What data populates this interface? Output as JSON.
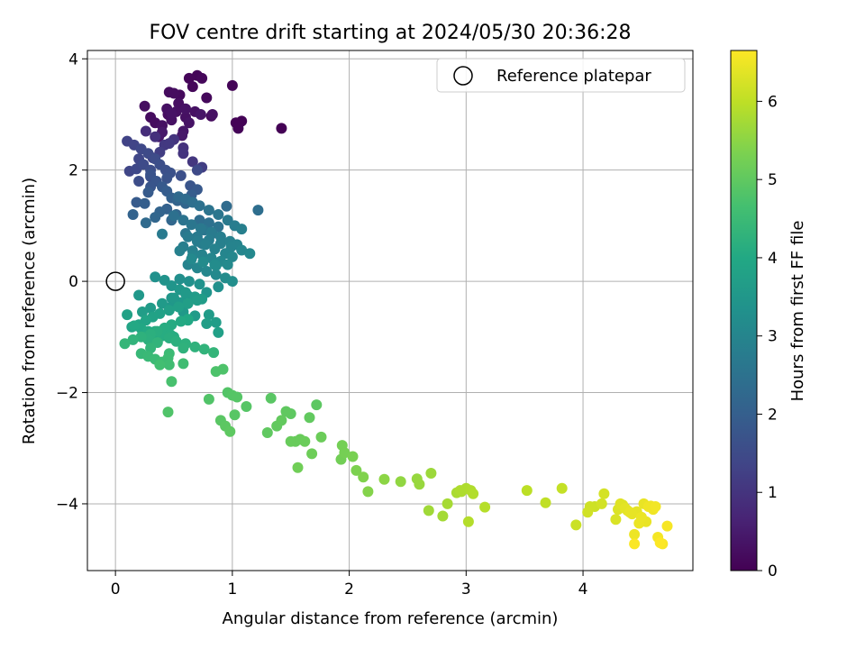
{
  "chart_data": {
    "type": "scatter",
    "title": "FOV centre drift starting at 2024/05/30 20:36:28",
    "xlabel": "Angular distance from reference (arcmin)",
    "ylabel": "Rotation from reference (arcmin)",
    "xlim": [
      -0.24,
      4.94
    ],
    "ylim": [
      -5.2,
      4.15
    ],
    "x_ticks": [
      0,
      1,
      2,
      3,
      4
    ],
    "y_ticks": [
      -4,
      -2,
      0,
      2,
      4
    ],
    "grid": true,
    "legend": {
      "placement": "top-right",
      "entries": [
        "Reference platepar"
      ]
    },
    "reference_point": {
      "name": "Reference platepar",
      "x": 0,
      "y": 0
    },
    "colorbar": {
      "label": "Hours from first FF file",
      "range": [
        0,
        6.65
      ],
      "ticks": [
        0,
        1,
        2,
        3,
        4,
        5,
        6
      ],
      "colormap": "viridis",
      "colors": [
        "#440154",
        "#482475",
        "#414487",
        "#355f8d",
        "#2a788e",
        "#21918c",
        "#22a884",
        "#44bf70",
        "#7ad151",
        "#bddf26",
        "#fde725"
      ]
    },
    "series": [
      {
        "x": [
          0.3,
          0.45,
          0.52,
          0.6,
          0.63,
          0.73,
          0.58,
          0.48,
          0.4,
          0.34,
          0.25,
          0.37,
          0.55,
          0.66,
          0.78,
          0.83,
          0.7,
          0.63,
          1.03,
          1.05,
          1.08,
          1.0,
          1.42,
          0.46,
          0.5,
          0.54,
          0.6,
          0.68,
          0.74,
          0.82,
          0.57,
          0.4,
          0.44,
          0.48,
          0.1,
          0.16,
          0.22,
          0.28,
          0.34,
          0.38,
          0.43,
          0.47,
          0.3,
          0.12,
          0.18,
          0.24,
          0.32,
          0.38,
          0.42,
          0.5,
          0.58,
          0.2,
          0.26,
          0.34,
          0.46,
          0.58,
          0.66,
          0.74,
          0.3,
          0.35,
          0.4,
          0.44,
          0.48,
          0.53,
          0.6,
          0.65,
          0.7,
          0.2,
          0.3,
          0.28,
          0.25,
          0.15,
          0.48,
          0.34,
          0.38,
          0.26,
          0.18,
          0.3,
          0.44,
          0.56,
          0.64,
          0.44,
          0.52,
          0.7,
          0.54,
          0.6,
          0.66,
          0.72,
          0.8,
          0.88,
          0.96,
          1.02,
          1.08,
          0.5,
          0.58,
          0.65,
          0.73,
          0.82,
          0.9,
          0.98,
          1.04,
          0.62,
          0.7,
          0.77,
          0.85,
          0.94,
          1.0,
          0.58,
          0.66,
          0.74,
          0.82,
          0.9,
          0.96,
          0.62,
          0.7,
          0.78,
          0.86,
          0.94,
          1.0,
          0.6,
          0.7,
          0.8,
          0.9,
          0.99,
          1.08,
          1.15,
          0.65,
          0.75,
          0.85,
          0.72,
          0.8,
          0.88,
          0.76,
          0.55,
          0.66,
          0.74,
          0.83,
          0.95,
          1.22,
          0.86,
          0.4,
          0.34,
          0.42,
          0.48,
          0.55,
          0.6,
          0.68,
          0.74,
          0.78,
          0.88,
          0.48,
          0.56,
          0.62,
          0.8,
          0.86,
          0.55,
          0.63,
          0.72,
          0.48,
          0.58,
          0.68,
          0.78,
          0.1,
          0.16,
          0.22,
          0.28,
          0.34,
          0.4,
          0.46,
          0.52,
          0.6,
          0.68,
          0.76,
          0.84,
          0.88,
          0.14,
          0.2,
          0.26,
          0.32,
          0.38,
          0.46,
          0.54,
          0.62,
          0.7,
          0.08,
          0.15,
          0.22,
          0.3,
          0.36,
          0.42,
          0.48,
          0.56,
          0.62,
          0.22,
          0.28,
          0.34,
          0.4,
          0.46,
          0.3,
          0.36,
          0.46,
          0.58,
          0.26,
          0.34,
          0.42,
          0.47,
          0.58,
          0.23,
          0.3,
          0.4,
          0.5,
          0.6,
          0.38,
          0.45,
          0.5,
          0.48,
          0.62,
          0.2,
          0.16,
          0.45,
          0.28,
          0.8,
          0.86,
          0.92,
          0.96,
          1.0,
          1.04,
          0.9,
          0.94,
          0.98,
          1.02,
          1.12,
          1.33,
          1.3,
          1.38,
          1.42,
          1.46,
          1.5,
          1.54,
          1.58,
          1.62,
          1.66,
          1.72,
          1.76,
          1.68,
          1.56,
          1.5,
          1.94,
          1.96,
          2.03,
          2.06,
          2.12,
          2.16,
          2.3,
          2.44,
          2.58,
          2.6,
          2.7,
          1.93,
          2.68,
          2.8,
          2.84,
          2.92,
          2.96,
          3.0,
          3.04,
          3.06,
          3.16,
          3.02,
          2.95,
          3.52,
          3.68,
          3.82,
          3.94,
          4.04,
          4.06,
          4.1,
          4.16,
          4.18,
          4.3,
          4.32,
          4.36,
          4.4,
          4.44,
          4.48,
          4.52,
          4.56,
          4.6,
          4.64,
          4.68,
          4.72,
          4.46,
          4.54,
          4.42,
          4.38,
          4.5,
          4.62,
          4.34,
          4.28,
          4.44,
          4.58,
          4.66
        ],
        "y": [
          2.95,
          3.0,
          3.05,
          3.1,
          2.85,
          3.0,
          2.7,
          2.9,
          2.8,
          2.85,
          3.15,
          2.6,
          3.35,
          3.5,
          3.3,
          3.0,
          3.7,
          3.65,
          2.85,
          2.75,
          2.88,
          3.52,
          2.75,
          3.4,
          3.38,
          3.2,
          2.95,
          3.05,
          3.65,
          2.97,
          2.62,
          2.68,
          3.1,
          3.02,
          2.52,
          2.45,
          2.38,
          2.3,
          2.2,
          2.1,
          2.0,
          1.95,
          1.92,
          1.98,
          2.02,
          2.1,
          2.22,
          2.32,
          2.45,
          2.55,
          2.4,
          2.2,
          2.7,
          2.6,
          2.48,
          2.3,
          2.15,
          2.05,
          2.0,
          1.8,
          1.7,
          1.62,
          1.5,
          1.45,
          1.4,
          1.55,
          1.65,
          1.8,
          1.88,
          1.6,
          1.4,
          1.2,
          1.1,
          1.15,
          1.25,
          1.05,
          1.42,
          1.7,
          1.85,
          1.9,
          1.72,
          1.3,
          1.2,
          2.0,
          1.52,
          1.48,
          1.42,
          1.36,
          1.28,
          1.2,
          1.1,
          1.0,
          0.94,
          1.18,
          1.1,
          1.02,
          0.95,
          0.88,
          0.8,
          0.72,
          0.66,
          0.8,
          0.72,
          0.66,
          0.58,
          0.5,
          0.44,
          0.62,
          0.55,
          0.48,
          0.42,
          0.36,
          0.3,
          0.3,
          0.24,
          0.18,
          0.12,
          0.06,
          0.0,
          0.86,
          0.8,
          0.74,
          0.68,
          0.62,
          0.56,
          0.5,
          0.4,
          0.35,
          0.3,
          1.1,
          1.05,
          0.98,
          0.92,
          0.55,
          0.46,
          0.68,
          0.86,
          1.35,
          1.28,
          0.28,
          0.85,
          0.08,
          0.02,
          -0.08,
          -0.15,
          -0.22,
          -0.28,
          -0.32,
          -0.2,
          -0.1,
          -0.3,
          -0.38,
          -0.26,
          -0.6,
          -0.74,
          0.04,
          0.0,
          -0.05,
          -0.45,
          -0.55,
          -0.62,
          -0.76,
          -0.6,
          -0.8,
          -0.85,
          -0.9,
          -0.95,
          -0.98,
          -1.02,
          -1.08,
          -1.12,
          -1.18,
          -1.22,
          -1.28,
          -0.92,
          -0.82,
          -0.78,
          -0.7,
          -0.64,
          -0.58,
          -0.52,
          -0.46,
          -0.4,
          -0.34,
          -1.12,
          -1.05,
          -1.0,
          -0.95,
          -0.9,
          -0.84,
          -0.78,
          -0.72,
          -0.68,
          -1.3,
          -1.35,
          -1.4,
          -1.45,
          -1.5,
          -1.2,
          -1.1,
          -1.3,
          -1.48,
          -1.0,
          -0.9,
          -0.86,
          -0.96,
          -1.2,
          -0.55,
          -0.48,
          -0.4,
          -0.3,
          -0.2,
          -1.5,
          -1.38,
          -1.0,
          -1.8,
          -0.7,
          -0.25,
          -0.8,
          -2.35,
          -1.05,
          -2.12,
          -1.62,
          -1.58,
          -2.0,
          -2.05,
          -2.08,
          -2.5,
          -2.6,
          -2.7,
          -2.4,
          -2.25,
          -2.1,
          -2.72,
          -2.6,
          -2.5,
          -2.34,
          -2.38,
          -2.88,
          -2.84,
          -2.88,
          -2.45,
          -2.22,
          -2.8,
          -3.1,
          -3.35,
          -2.88,
          -2.95,
          -3.08,
          -3.15,
          -3.4,
          -3.52,
          -3.78,
          -3.56,
          -3.6,
          -3.55,
          -3.65,
          -3.45,
          -3.2,
          -4.12,
          -4.22,
          -4.0,
          -3.8,
          -3.78,
          -3.72,
          -3.76,
          -3.82,
          -4.06,
          -4.32,
          -3.76,
          -3.76,
          -3.98,
          -3.72,
          -4.38,
          -4.15,
          -4.05,
          -4.05,
          -4.0,
          -3.82,
          -4.1,
          -4.0,
          -4.08,
          -4.15,
          -4.55,
          -4.35,
          -4.0,
          -4.05,
          -4.1,
          -4.6,
          -4.72,
          -4.4,
          -4.14,
          -4.32,
          -4.18,
          -4.12,
          -4.24,
          -4.05,
          -4.02,
          -4.28,
          -4.72,
          -4.04,
          -4.7
        ],
        "hours": [
          0.2,
          0.25,
          0.28,
          0.32,
          0.35,
          0.38,
          0.4,
          0.3,
          0.3,
          0.22,
          0.24,
          0.42,
          0.18,
          0.12,
          0.15,
          0.3,
          0.08,
          0.1,
          0.05,
          0.06,
          0.04,
          0.07,
          0.02,
          0.2,
          0.22,
          0.26,
          0.28,
          0.3,
          0.12,
          0.18,
          0.45,
          0.45,
          0.3,
          0.34,
          1.3,
          1.35,
          1.42,
          1.48,
          1.52,
          1.58,
          1.62,
          1.66,
          1.7,
          1.38,
          1.44,
          1.5,
          1.3,
          1.2,
          1.1,
          1.0,
          0.95,
          1.4,
          0.85,
          0.92,
          1.1,
          1.0,
          1.05,
          1.2,
          1.56,
          1.76,
          1.88,
          1.95,
          2.05,
          2.12,
          2.15,
          1.95,
          1.84,
          1.54,
          1.6,
          1.9,
          2.0,
          2.1,
          2.2,
          2.18,
          2.12,
          2.28,
          1.9,
          1.76,
          1.7,
          1.62,
          1.74,
          2.08,
          2.18,
          1.48,
          2.3,
          2.35,
          2.42,
          2.48,
          2.55,
          2.62,
          2.7,
          2.78,
          2.85,
          2.46,
          2.54,
          2.6,
          2.68,
          2.75,
          2.82,
          2.9,
          2.96,
          2.74,
          2.8,
          2.86,
          2.92,
          3.0,
          3.06,
          2.82,
          2.88,
          2.94,
          3.02,
          3.08,
          3.14,
          2.94,
          3.0,
          3.06,
          3.12,
          3.18,
          3.24,
          2.6,
          2.7,
          2.78,
          2.86,
          2.94,
          3.02,
          3.08,
          3.1,
          3.16,
          3.2,
          2.38,
          2.45,
          2.52,
          2.58,
          2.88,
          2.96,
          2.72,
          2.62,
          2.32,
          2.4,
          3.2,
          2.7,
          3.32,
          3.38,
          3.44,
          3.5,
          3.56,
          3.6,
          3.64,
          3.4,
          3.3,
          3.46,
          3.52,
          3.48,
          3.62,
          3.68,
          3.26,
          3.3,
          3.36,
          3.5,
          3.56,
          3.6,
          3.7,
          3.8,
          3.9,
          3.96,
          4.02,
          4.06,
          4.1,
          4.14,
          4.18,
          4.22,
          4.26,
          4.3,
          4.34,
          3.76,
          3.84,
          3.88,
          3.86,
          3.82,
          3.78,
          3.74,
          3.72,
          3.7,
          3.68,
          4.38,
          4.3,
          4.24,
          4.18,
          4.14,
          4.1,
          4.06,
          4.02,
          3.98,
          4.42,
          4.46,
          4.5,
          4.54,
          4.58,
          4.34,
          4.3,
          4.5,
          4.58,
          4.12,
          4.06,
          4.02,
          4.1,
          4.26,
          3.66,
          3.62,
          3.58,
          3.54,
          3.5,
          4.62,
          4.54,
          4.1,
          4.7,
          3.96,
          3.52,
          4.0,
          4.8,
          4.2,
          4.82,
          4.76,
          4.78,
          4.84,
          4.86,
          4.88,
          4.92,
          4.95,
          4.98,
          4.9,
          4.88,
          4.92,
          5.0,
          5.02,
          5.04,
          5.0,
          4.98,
          5.08,
          5.1,
          5.12,
          5.02,
          4.96,
          5.14,
          5.16,
          5.2,
          5.1,
          5.24,
          5.26,
          5.3,
          5.34,
          5.38,
          5.42,
          5.5,
          5.55,
          5.6,
          5.62,
          5.66,
          5.22,
          5.7,
          5.74,
          5.76,
          5.8,
          5.82,
          5.84,
          5.86,
          5.88,
          5.92,
          5.9,
          5.84,
          5.98,
          6.02,
          6.06,
          6.12,
          6.18,
          6.16,
          6.14,
          6.2,
          6.22,
          6.3,
          6.34,
          6.38,
          6.42,
          6.48,
          6.46,
          6.44,
          6.5,
          6.52,
          6.56,
          6.6,
          6.58,
          6.4,
          6.44,
          6.42,
          6.36,
          6.46,
          6.54,
          6.32,
          6.28,
          6.62,
          6.5,
          6.64
        ]
      }
    ]
  }
}
